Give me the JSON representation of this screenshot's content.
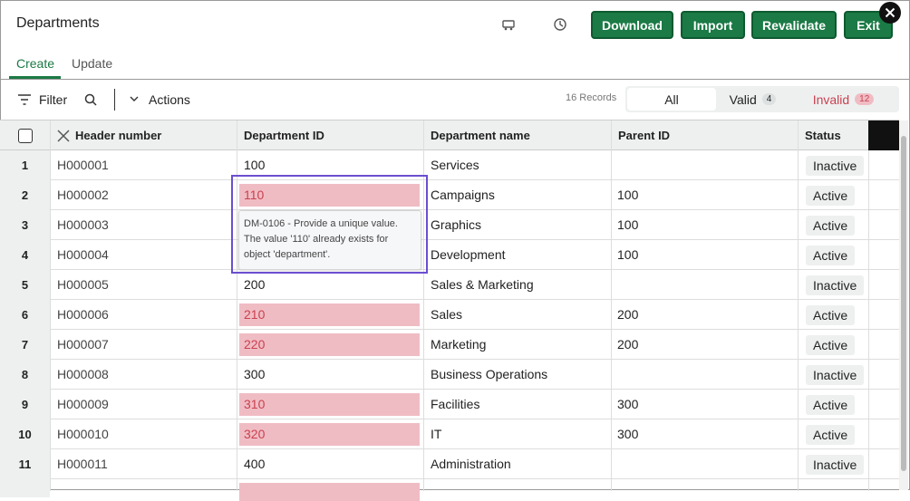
{
  "header": {
    "title": "Departments",
    "buttons": [
      "Download",
      "Import",
      "Revalidate",
      "Exit"
    ]
  },
  "tabs": {
    "items": [
      "Create",
      "Update"
    ],
    "active": 0
  },
  "toolbar": {
    "filter": "Filter",
    "actions": "Actions",
    "records": "16 Records",
    "segments": [
      {
        "label": "All"
      },
      {
        "label": "Valid",
        "count": 4
      },
      {
        "label": "Invalid",
        "count": 12
      }
    ]
  },
  "table": {
    "columns": [
      "Header number",
      "Department ID",
      "Department name",
      "Parent ID",
      "Status"
    ],
    "rows": [
      {
        "number": 1,
        "header": "H000001",
        "department_id": "100",
        "department_name": "Services",
        "parent_id": null,
        "status": "Inactive",
        "id_invalid": false
      },
      {
        "number": 2,
        "header": "H000002",
        "department_id": "110",
        "department_name": "Campaigns",
        "parent_id": "100",
        "status": "Active",
        "id_invalid": true
      },
      {
        "number": 3,
        "header": "H000003",
        "department_id": null,
        "department_name": "Graphics",
        "parent_id": "100",
        "status": "Active",
        "id_invalid": false
      },
      {
        "number": 4,
        "header": "H000004",
        "department_id": null,
        "department_name": "Development",
        "parent_id": "100",
        "status": "Active",
        "id_invalid": false
      },
      {
        "number": 5,
        "header": "H000005",
        "department_id": "200",
        "department_name": "Sales & Marketing",
        "parent_id": null,
        "status": "Inactive",
        "id_invalid": false
      },
      {
        "number": 6,
        "header": "H000006",
        "department_id": "210",
        "department_name": "Sales",
        "parent_id": "200",
        "status": "Active",
        "id_invalid": true
      },
      {
        "number": 7,
        "header": "H000007",
        "department_id": "220",
        "department_name": "Marketing",
        "parent_id": "200",
        "status": "Active",
        "id_invalid": true
      },
      {
        "number": 8,
        "header": "H000008",
        "department_id": "300",
        "department_name": "Business Operations",
        "parent_id": null,
        "status": "Inactive",
        "id_invalid": false
      },
      {
        "number": 9,
        "header": "H000009",
        "department_id": "310",
        "department_name": "Facilities",
        "parent_id": "300",
        "status": "Active",
        "id_invalid": true
      },
      {
        "number": 10,
        "header": "H000010",
        "department_id": "320",
        "department_name": "IT",
        "parent_id": "300",
        "status": "Active",
        "id_invalid": true
      },
      {
        "number": 11,
        "header": "H000011",
        "department_id": "400",
        "department_name": "Administration",
        "parent_id": null,
        "status": "Inactive",
        "id_invalid": false
      }
    ]
  },
  "tooltip": {
    "lines": [
      "DM-0106 - Provide a unique value.",
      "The value '110' already exists for",
      "object 'department'."
    ]
  }
}
